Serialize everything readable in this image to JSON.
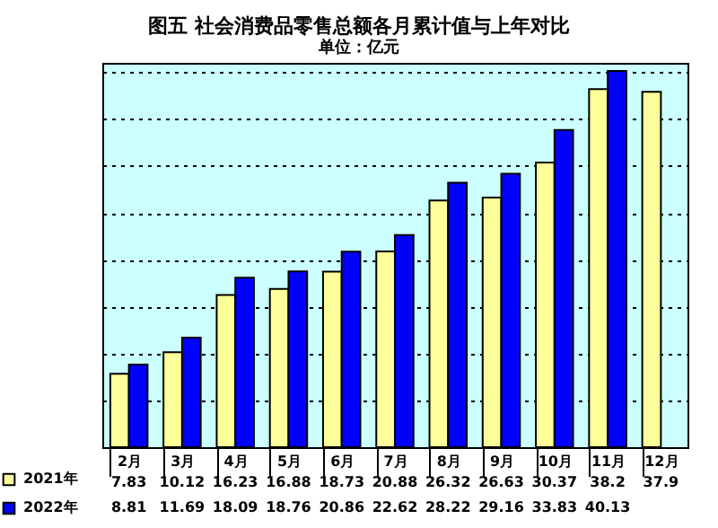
{
  "chart_data": {
    "type": "bar",
    "title": "图五  社会消费品零售总额各月累计值与上年对比",
    "subtitle": "单位：亿元",
    "categories": [
      "2月",
      "3月",
      "4月",
      "5月",
      "6月",
      "7月",
      "8月",
      "9月",
      "10月",
      "11月",
      "12月"
    ],
    "series": [
      {
        "name": "2021年",
        "color": "#ffff99",
        "values": [
          7.83,
          10.12,
          16.23,
          16.88,
          18.73,
          20.88,
          26.32,
          26.63,
          30.37,
          38.2,
          37.9
        ]
      },
      {
        "name": "2022年",
        "color": "#0000ff",
        "values": [
          8.81,
          11.69,
          18.09,
          18.76,
          20.86,
          22.62,
          28.22,
          29.16,
          33.83,
          40.13,
          null
        ]
      }
    ],
    "ylim": [
      0,
      41
    ],
    "grid": "y",
    "data_labels": true,
    "legend": "bottom left",
    "tick_labels": "x"
  }
}
